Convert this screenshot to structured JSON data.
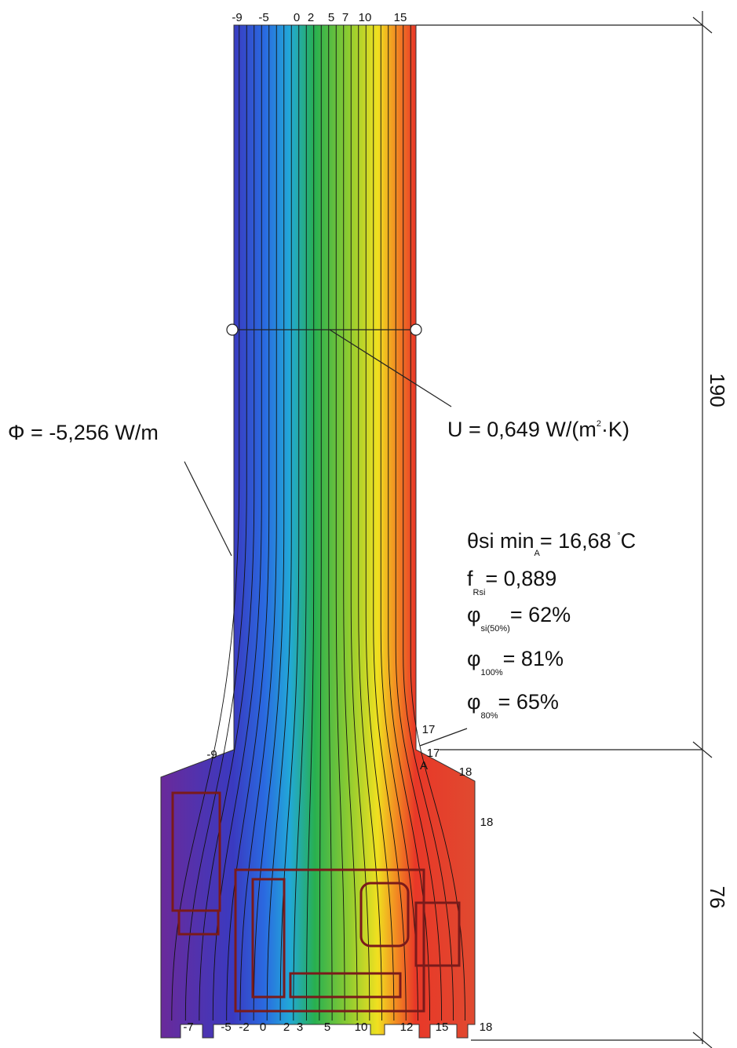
{
  "top_labels": [
    "-9",
    "-5",
    "0",
    "2",
    "5",
    "7",
    "10",
    "15"
  ],
  "frame_labels": [
    "-9",
    "17",
    "17",
    "18",
    "18",
    "A"
  ],
  "bottom_labels": [
    "-7",
    "-5",
    "-2",
    "0",
    "2",
    "3",
    "5",
    "10",
    "12",
    "15",
    "18"
  ],
  "annotations": {
    "flux": [
      "Φ = -5,256 W/m"
    ],
    "u_value": [
      "U = 0,649 W/(m",
      "2",
      "·K)"
    ],
    "theta": [
      "θsi min",
      "A",
      "= 16,68 ",
      "°",
      "C"
    ],
    "f_rsi": [
      "f",
      "Rsi",
      "= 0,889"
    ],
    "phi_50": [
      "φ",
      "si(50%)",
      "= 62%"
    ],
    "phi_100": [
      "φ",
      "100%",
      "= 81%"
    ],
    "phi_80": [
      "φ",
      "80%",
      "= 65%"
    ]
  },
  "dimensions": [
    "190",
    "76"
  ]
}
